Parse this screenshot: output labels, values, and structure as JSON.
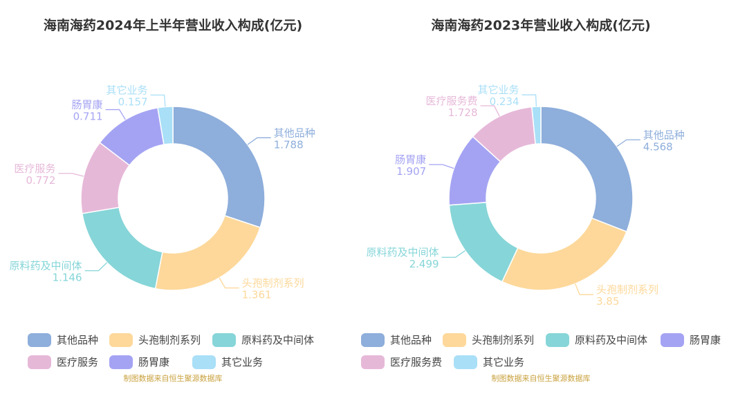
{
  "charts": [
    {
      "title": "海南海药2024年上半年营业收入构成(亿元)",
      "source": "制图数据来自恒生聚源数据库",
      "legend_rows": [
        [
          0,
          1,
          2
        ],
        [
          3,
          4,
          5
        ]
      ],
      "chart_data": {
        "type": "pie",
        "title": "海南海药2024年上半年营业收入构成(亿元)",
        "donut": true,
        "legend_position": "bottom",
        "slices": [
          {
            "label": "其他品种",
            "value": 1.788,
            "value_text": "1.788",
            "color": "#8eaedb"
          },
          {
            "label": "头孢制剂系列",
            "value": 1.361,
            "value_text": "1.361",
            "color": "#fdd89a"
          },
          {
            "label": "原料药及中间体",
            "value": 1.146,
            "value_text": "1.146",
            "color": "#86d5d8"
          },
          {
            "label": "医疗服务",
            "value": 0.772,
            "value_text": "0.772",
            "color": "#e6b8d8"
          },
          {
            "label": "肠胃康",
            "value": 0.711,
            "value_text": "0.711",
            "color": "#a4a3f3"
          },
          {
            "label": "其它业务",
            "value": 0.157,
            "value_text": "0.157",
            "color": "#a9dff7"
          }
        ]
      }
    },
    {
      "title": "海南海药2023年营业收入构成(亿元)",
      "source": "制图数据来自恒生聚源数据库",
      "legend_rows": [
        [
          0,
          1,
          2,
          3
        ],
        [
          4,
          5
        ]
      ],
      "chart_data": {
        "type": "pie",
        "title": "海南海药2023年营业收入构成(亿元)",
        "donut": true,
        "legend_position": "bottom",
        "slices": [
          {
            "label": "其他品种",
            "value": 4.568,
            "value_text": "4.568",
            "color": "#8eaedb"
          },
          {
            "label": "头孢制剂系列",
            "value": 3.85,
            "value_text": "3.85",
            "color": "#fdd89a"
          },
          {
            "label": "原料药及中间体",
            "value": 2.499,
            "value_text": "2.499",
            "color": "#86d5d8"
          },
          {
            "label": "肠胃康",
            "value": 1.907,
            "value_text": "1.907",
            "color": "#a4a3f3"
          },
          {
            "label": "医疗服务费",
            "value": 1.728,
            "value_text": "1.728",
            "color": "#e6b8d8"
          },
          {
            "label": "其它业务",
            "value": 0.234,
            "value_text": "0.234",
            "color": "#a9dff7"
          }
        ]
      }
    }
  ]
}
